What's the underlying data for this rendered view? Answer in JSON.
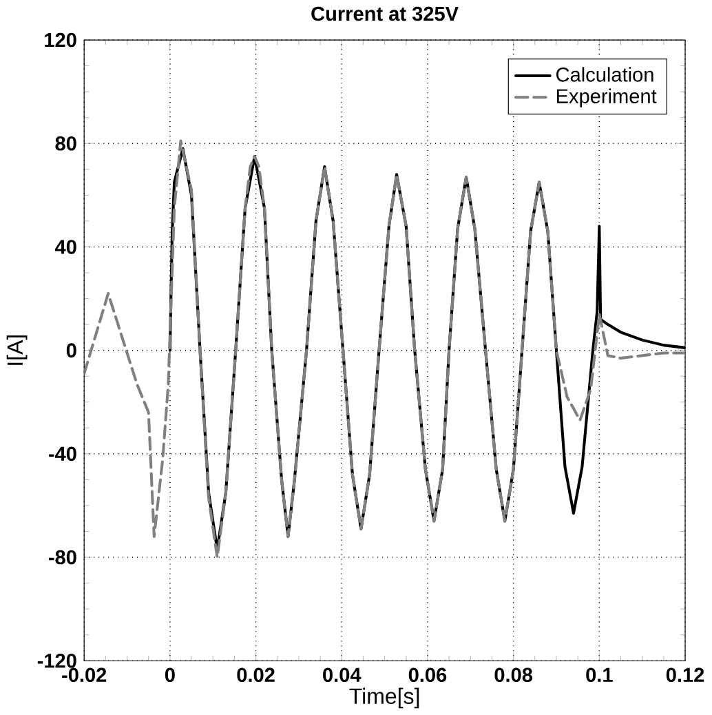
{
  "chart_data": {
    "type": "line",
    "title": "Current at 325V",
    "xlabel": "Time[s]",
    "ylabel": "I[A]",
    "xlim": [
      -0.02,
      0.12
    ],
    "ylim": [
      -120,
      120
    ],
    "xticks": [
      -0.02,
      0,
      0.02,
      0.04,
      0.06,
      0.08,
      0.1,
      0.12
    ],
    "yticks": [
      -120,
      -80,
      -40,
      0,
      40,
      80,
      120
    ],
    "grid": true,
    "legend": "top right",
    "series": [
      {
        "name": "Calculation",
        "color": "#000000",
        "line_style": "solid",
        "x": [
          0,
          0.0005,
          0.001,
          0.003,
          0.005,
          0.007,
          0.009,
          0.011,
          0.013,
          0.0153,
          0.0175,
          0.0197,
          0.022,
          0.0237,
          0.026,
          0.0275,
          0.029,
          0.0318,
          0.034,
          0.036,
          0.038,
          0.0403,
          0.0425,
          0.0445,
          0.0465,
          0.0487,
          0.051,
          0.0528,
          0.055,
          0.057,
          0.0595,
          0.0615,
          0.0635,
          0.065,
          0.067,
          0.069,
          0.071,
          0.0735,
          0.076,
          0.078,
          0.08,
          0.082,
          0.084,
          0.086,
          0.088,
          0.09,
          0.092,
          0.094,
          0.096,
          0.0985,
          0.0995,
          0.1,
          0.1003,
          0.102,
          0.105,
          0.11,
          0.115,
          0.12
        ],
        "values": [
          0,
          45,
          65,
          78,
          60,
          0,
          -55,
          -77,
          -55,
          0,
          55,
          75,
          55,
          0,
          -50,
          -72,
          -50,
          0,
          50,
          71,
          50,
          0,
          -48,
          -69,
          -48,
          0,
          48,
          68,
          48,
          0,
          -46,
          -66,
          -46,
          0,
          47,
          67,
          47,
          0,
          -46,
          -66,
          -46,
          0,
          46,
          65,
          46,
          0,
          -45,
          -63,
          -45,
          0,
          15,
          48,
          12,
          10,
          7,
          4,
          2,
          1
        ]
      },
      {
        "name": "Experiment",
        "color": "#808080",
        "line_style": "dashed",
        "x": [
          -0.02,
          -0.0144,
          -0.0077,
          -0.005,
          -0.0037,
          -0.0017,
          -0.0004,
          0.001,
          0.0025,
          0.005,
          0.007,
          0.009,
          0.011,
          0.013,
          0.0153,
          0.0175,
          0.0187,
          0.0197,
          0.0207,
          0.022,
          0.0237,
          0.026,
          0.0275,
          0.029,
          0.0318,
          0.034,
          0.036,
          0.038,
          0.0403,
          0.0425,
          0.0445,
          0.0465,
          0.0487,
          0.051,
          0.0528,
          0.055,
          0.057,
          0.0595,
          0.0615,
          0.0635,
          0.065,
          0.067,
          0.069,
          0.071,
          0.0735,
          0.076,
          0.078,
          0.08,
          0.082,
          0.084,
          0.086,
          0.088,
          0.09,
          0.0925,
          0.0955,
          0.098,
          0.1,
          0.102,
          0.105,
          0.11,
          0.115,
          0.12
        ],
        "values": [
          -9,
          22,
          -13,
          -24,
          -72,
          -42,
          -13,
          55,
          81,
          62,
          0,
          -57,
          -80,
          -55,
          0,
          55,
          71,
          75,
          71,
          55,
          0,
          -50,
          -72,
          -50,
          0,
          50,
          71,
          50,
          0,
          -48,
          -69,
          -48,
          0,
          48,
          68,
          48,
          0,
          -46,
          -66,
          -46,
          0,
          47,
          67,
          47,
          0,
          -46,
          -66,
          -46,
          0,
          46,
          65,
          46,
          0,
          -18,
          -27,
          -15,
          14,
          -2,
          -3,
          -2,
          -1,
          -1
        ]
      }
    ]
  }
}
